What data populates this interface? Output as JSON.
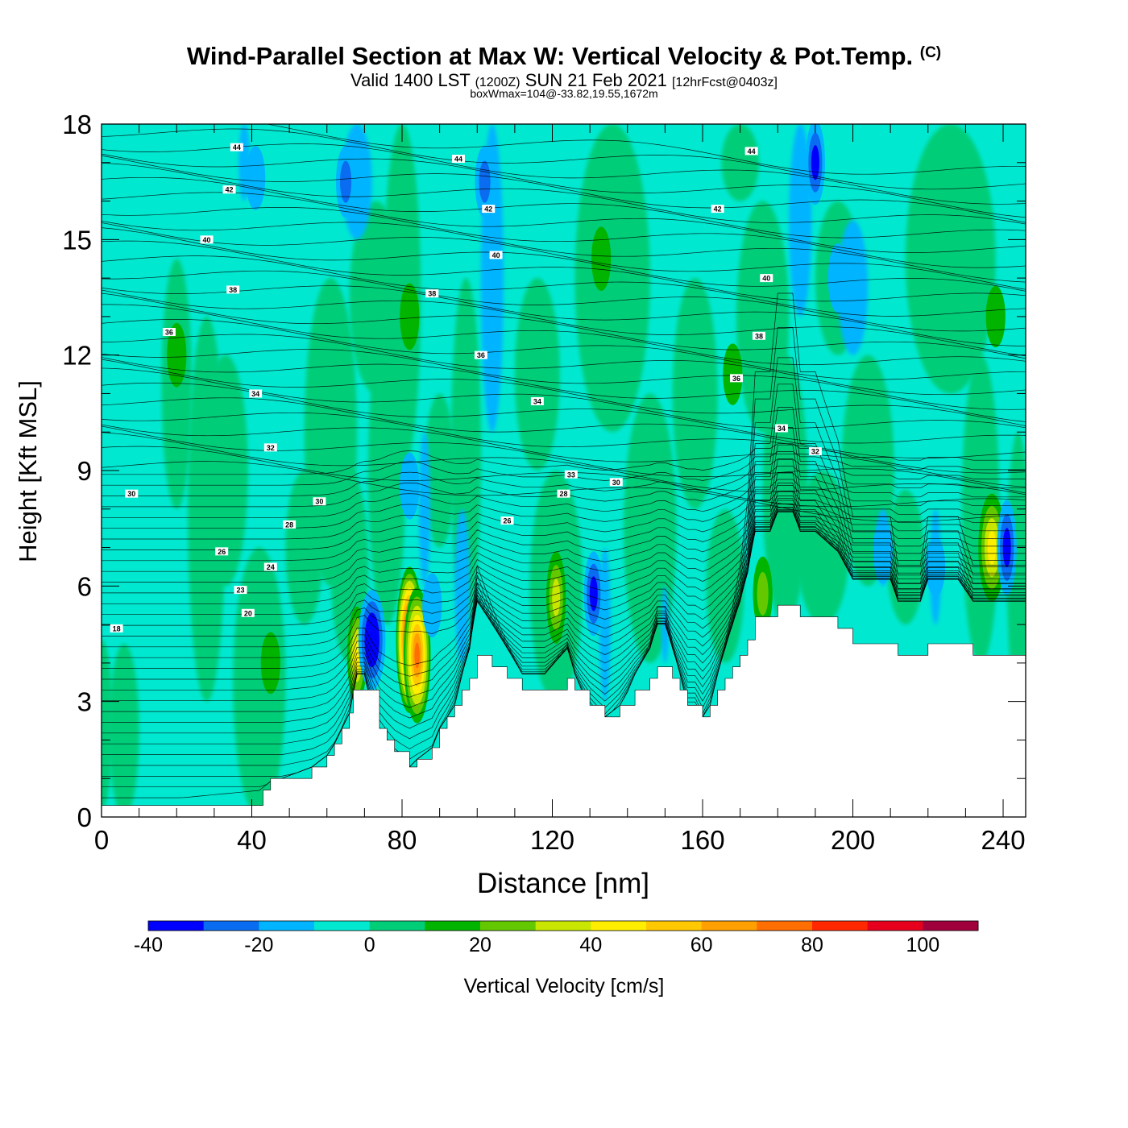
{
  "header": {
    "title": "Wind-Parallel Section at Max W: Vertical Velocity & Pot.Temp.",
    "copyright_mark": "(C)",
    "valid_prefix": "Valid 1400 LST",
    "valid_utc": "(1200Z)",
    "valid_date": "SUN 21 Feb 2021",
    "forecast_tag": "[12hrFcst@0403z]",
    "box_wmax": "boxWmax=104@-33.82,19.55,1672m"
  },
  "chart_data": {
    "type": "heatmap",
    "xlabel": "Distance [nm]",
    "ylabel": "Height [Kft MSL]",
    "x_ticks": [
      "0",
      "40",
      "80",
      "120",
      "160",
      "200",
      "240"
    ],
    "y_ticks": [
      "0",
      "3",
      "6",
      "9",
      "12",
      "15",
      "18"
    ],
    "xlim": [
      0,
      246
    ],
    "ylim": [
      0,
      18
    ],
    "colorbar": {
      "label": "Vertical Velocity [cm/s]",
      "tick_labels": [
        "-40",
        "-20",
        "0",
        "20",
        "40",
        "60",
        "80",
        "100"
      ],
      "min": -40,
      "max": 110,
      "step": 10,
      "colors": [
        "#0000ff",
        "#0a6cf0",
        "#00b4ff",
        "#00e8d0",
        "#00cd78",
        "#00b400",
        "#64c800",
        "#c8e600",
        "#ffee00",
        "#ffc800",
        "#ffa000",
        "#ff6e00",
        "#ff2800",
        "#e6001e",
        "#a0003c"
      ]
    },
    "background_value_color": "#00e8d0",
    "terrain": {
      "x": [
        0,
        43,
        45,
        48,
        56,
        60,
        62,
        64,
        66,
        67,
        70,
        74,
        76,
        78,
        82,
        84,
        88,
        90,
        92,
        94,
        96,
        98,
        100,
        104,
        108,
        112,
        118,
        124,
        126,
        130,
        134,
        138,
        142,
        146,
        148,
        150,
        152,
        154,
        156,
        158,
        160,
        162,
        164,
        166,
        168,
        170,
        172,
        174,
        176,
        178,
        180,
        184,
        186,
        190,
        196,
        200,
        206,
        210,
        212,
        218,
        220,
        228,
        232,
        236,
        246
      ],
      "height_kft": [
        0.3,
        0.7,
        1.0,
        1.0,
        1.3,
        1.6,
        1.9,
        2.3,
        2.7,
        3.3,
        3.3,
        2.3,
        2.0,
        1.7,
        1.3,
        1.5,
        1.8,
        2.3,
        2.6,
        2.9,
        3.3,
        3.6,
        4.2,
        3.9,
        3.6,
        3.3,
        3.3,
        3.6,
        3.3,
        2.9,
        2.6,
        2.9,
        3.3,
        3.6,
        3.9,
        3.9,
        3.6,
        3.3,
        2.9,
        2.9,
        2.6,
        2.9,
        3.3,
        3.6,
        3.9,
        4.2,
        4.6,
        5.2,
        5.2,
        5.2,
        5.5,
        5.5,
        5.2,
        5.2,
        4.9,
        4.5,
        4.5,
        4.5,
        4.2,
        4.2,
        4.5,
        4.5,
        4.2,
        4.2,
        4.2
      ]
    },
    "w_features": [
      {
        "x": 82,
        "z": 4.6,
        "peak": 104
      },
      {
        "x": 84,
        "z": 4.2,
        "peak": 70
      },
      {
        "x": 237,
        "z": 7.0,
        "peak": 48
      },
      {
        "x": 121,
        "z": 5.7,
        "peak": 36
      },
      {
        "x": 68,
        "z": 4.2,
        "peak": 40
      },
      {
        "x": 72,
        "z": 4.6,
        "peak": -42
      },
      {
        "x": 88,
        "z": 5.5,
        "peak": -14
      },
      {
        "x": 131,
        "z": 5.8,
        "peak": -30
      },
      {
        "x": 241,
        "z": 7.0,
        "peak": -38
      },
      {
        "x": 190,
        "z": 17.0,
        "peak": -30
      },
      {
        "x": 196,
        "z": 14.0,
        "peak": -18
      },
      {
        "x": 65,
        "z": 16.5,
        "peak": -20
      },
      {
        "x": 102,
        "z": 16.5,
        "peak": -20
      },
      {
        "x": 82,
        "z": 8.6,
        "peak": -16
      },
      {
        "x": 41,
        "z": 16.6,
        "peak": -14
      },
      {
        "x": 208,
        "z": 6.9,
        "peak": -14
      },
      {
        "x": 222,
        "z": 6.5,
        "peak": -10
      },
      {
        "x": 82,
        "z": 13.0,
        "peak": 16
      },
      {
        "x": 133,
        "z": 14.5,
        "peak": 14
      },
      {
        "x": 20,
        "z": 12.0,
        "peak": 14
      },
      {
        "x": 238,
        "z": 13.0,
        "peak": 12
      },
      {
        "x": 168,
        "z": 11.5,
        "peak": 12
      },
      {
        "x": 176,
        "z": 5.8,
        "peak": 22
      },
      {
        "x": 45,
        "z": 4.0,
        "peak": 12
      }
    ],
    "isentrope_labels": [
      {
        "x": 36,
        "z": 17.4,
        "text": "44"
      },
      {
        "x": 95,
        "z": 17.1,
        "text": "44"
      },
      {
        "x": 173,
        "z": 17.3,
        "text": "44"
      },
      {
        "x": 34,
        "z": 16.3,
        "text": "42"
      },
      {
        "x": 103,
        "z": 15.8,
        "text": "42"
      },
      {
        "x": 164,
        "z": 15.8,
        "text": "42"
      },
      {
        "x": 28,
        "z": 15.0,
        "text": "40"
      },
      {
        "x": 105,
        "z": 14.6,
        "text": "40"
      },
      {
        "x": 177,
        "z": 14.0,
        "text": "40"
      },
      {
        "x": 35,
        "z": 13.7,
        "text": "38"
      },
      {
        "x": 88,
        "z": 13.6,
        "text": "38"
      },
      {
        "x": 175,
        "z": 12.5,
        "text": "38"
      },
      {
        "x": 18,
        "z": 12.6,
        "text": "36"
      },
      {
        "x": 101,
        "z": 12.0,
        "text": "36"
      },
      {
        "x": 169,
        "z": 11.4,
        "text": "36"
      },
      {
        "x": 41,
        "z": 11.0,
        "text": "34"
      },
      {
        "x": 116,
        "z": 10.8,
        "text": "34"
      },
      {
        "x": 181,
        "z": 10.1,
        "text": "34"
      },
      {
        "x": 45,
        "z": 9.6,
        "text": "32"
      },
      {
        "x": 190,
        "z": 9.5,
        "text": "32"
      },
      {
        "x": 8,
        "z": 8.4,
        "text": "30"
      },
      {
        "x": 58,
        "z": 8.2,
        "text": "30"
      },
      {
        "x": 137,
        "z": 8.7,
        "text": "30"
      },
      {
        "x": 125,
        "z": 8.9,
        "text": "33"
      },
      {
        "x": 50,
        "z": 7.6,
        "text": "28"
      },
      {
        "x": 123,
        "z": 8.4,
        "text": "28"
      },
      {
        "x": 108,
        "z": 7.7,
        "text": "26"
      },
      {
        "x": 32,
        "z": 6.9,
        "text": "26"
      },
      {
        "x": 45,
        "z": 6.5,
        "text": "24"
      },
      {
        "x": 37,
        "z": 5.9,
        "text": "23"
      },
      {
        "x": 39,
        "z": 5.3,
        "text": "20"
      },
      {
        "x": 4,
        "z": 4.9,
        "text": "18"
      }
    ]
  }
}
